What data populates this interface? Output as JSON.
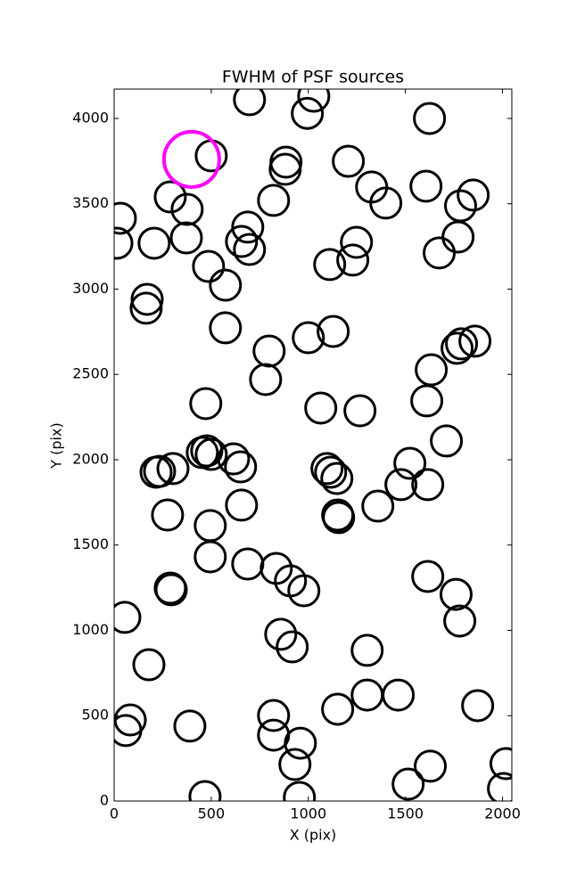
{
  "chart_data": {
    "type": "scatter",
    "title": "FWHM of PSF sources",
    "x_label": "X (pix)",
    "y_label": "Y (pix)",
    "xlim": [
      0,
      2048
    ],
    "ylim": [
      0,
      4172
    ],
    "xticks": [
      0,
      500,
      1000,
      1500,
      2000
    ],
    "yticks": [
      0,
      500,
      1000,
      1500,
      2000,
      2500,
      3000,
      3500,
      4000
    ],
    "series": [
      {
        "color": "#000000",
        "x": [
          697,
          1028,
          995,
          1624,
          500,
          885,
          881,
          1206,
          1326,
          1399,
          1606,
          1849,
          1784,
          32,
          289,
          376,
          821,
          688,
          14,
          206,
          372,
          656,
          697,
          486,
          573,
          1110,
          1229,
          1248,
          1674,
          1771,
          170,
          165,
          573,
          798,
          780,
          1000,
          1128,
          1633,
          1766,
          1789,
          1858,
          472,
          1064,
          1266,
          1610,
          1711,
          216,
          234,
          303,
          454,
          477,
          500,
          615,
          651,
          1096,
          1115,
          1147,
          1523,
          1477,
          1615,
          1358,
          1151,
          1156,
          656,
          275,
          495,
          495,
          688,
          835,
          908,
          977,
          1615,
          1761,
          1780,
          289,
          294,
          55,
          179,
          858,
          917,
          1303,
          1303,
          1463,
          1872,
          821,
          821,
          1151,
          959,
          931,
          83,
          60,
          390,
          468,
          954,
          1514,
          1628,
          2018,
          2005
        ],
        "y": [
          4110,
          4130,
          4030,
          4000,
          3781,
          3744,
          3702,
          3749,
          3598,
          3504,
          3603,
          3551,
          3488,
          3415,
          3540,
          3467,
          3520,
          3363,
          3269,
          3269,
          3300,
          3279,
          3232,
          3133,
          3023,
          3144,
          3170,
          3274,
          3212,
          3305,
          2940,
          2888,
          2773,
          2637,
          2470,
          2715,
          2752,
          2527,
          2653,
          2679,
          2695,
          2329,
          2303,
          2287,
          2345,
          2110,
          1927,
          1932,
          1948,
          2042,
          2052,
          2031,
          2005,
          1958,
          1948,
          1927,
          1890,
          1979,
          1854,
          1854,
          1728,
          1676,
          1661,
          1734,
          1676,
          1614,
          1431,
          1389,
          1363,
          1290,
          1232,
          1316,
          1211,
          1055,
          1248,
          1238,
          1076,
          799,
          977,
          903,
          883,
          621,
          621,
          559,
          501,
          386,
          538,
          339,
          214,
          475,
          413,
          439,
          26,
          21,
          99,
          204,
          219,
          73
        ]
      },
      {
        "color": "#ff00ff",
        "x": [
          399
        ],
        "y": [
          3760
        ]
      }
    ]
  }
}
